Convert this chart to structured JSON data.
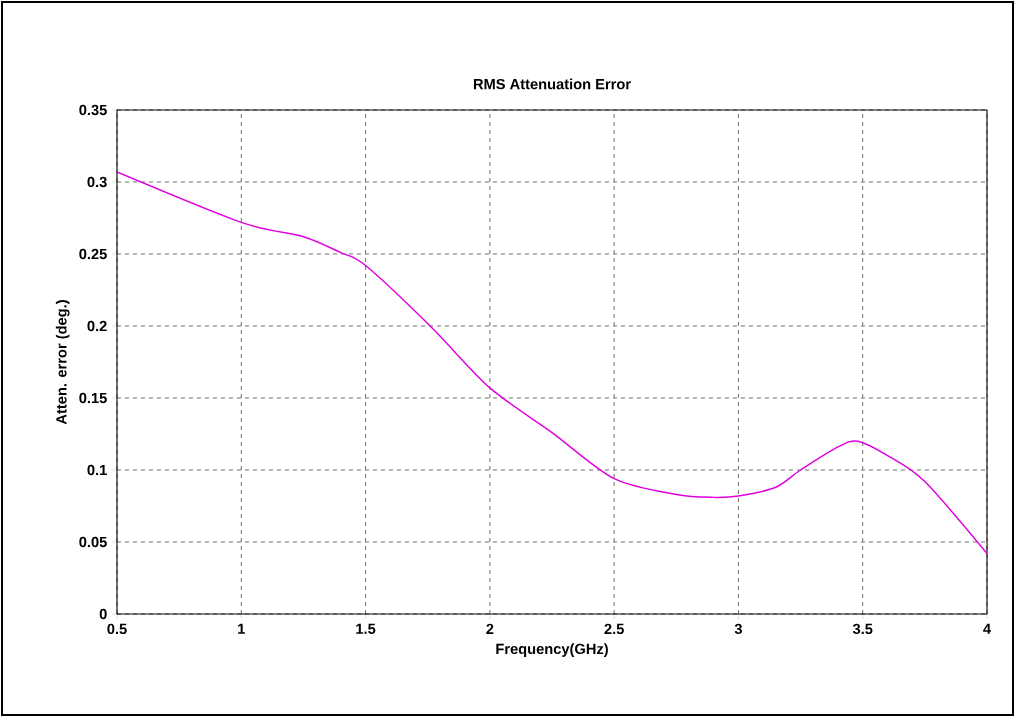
{
  "chart_data": {
    "type": "line",
    "title": "RMS Attenuation Error",
    "xlabel": "Frequency(GHz)",
    "ylabel": "Atten. error (deg.)",
    "series": [
      {
        "color": "#e000e0",
        "x": [
          0.5,
          1.0,
          1.25,
          1.4,
          1.5,
          1.76,
          2.0,
          2.25,
          2.5,
          2.75,
          2.9,
          3.0,
          3.15,
          3.25,
          3.4,
          3.48,
          3.6,
          3.75,
          4.0
        ],
        "values": [
          0.307,
          0.272,
          0.262,
          0.251,
          0.242,
          0.2,
          0.157,
          0.126,
          0.094,
          0.083,
          0.081,
          0.082,
          0.088,
          0.1,
          0.116,
          0.12,
          0.11,
          0.092,
          0.042
        ]
      }
    ],
    "xlim": [
      0.5,
      4
    ],
    "ylim": [
      0,
      0.35
    ],
    "xticks": [
      0.5,
      1,
      1.5,
      2,
      2.5,
      3,
      3.5,
      4
    ],
    "yticks": [
      0,
      0.05,
      0.1,
      0.15,
      0.2,
      0.25,
      0.3,
      0.35
    ],
    "grid": true,
    "marker": "none",
    "line_style": "solid"
  }
}
